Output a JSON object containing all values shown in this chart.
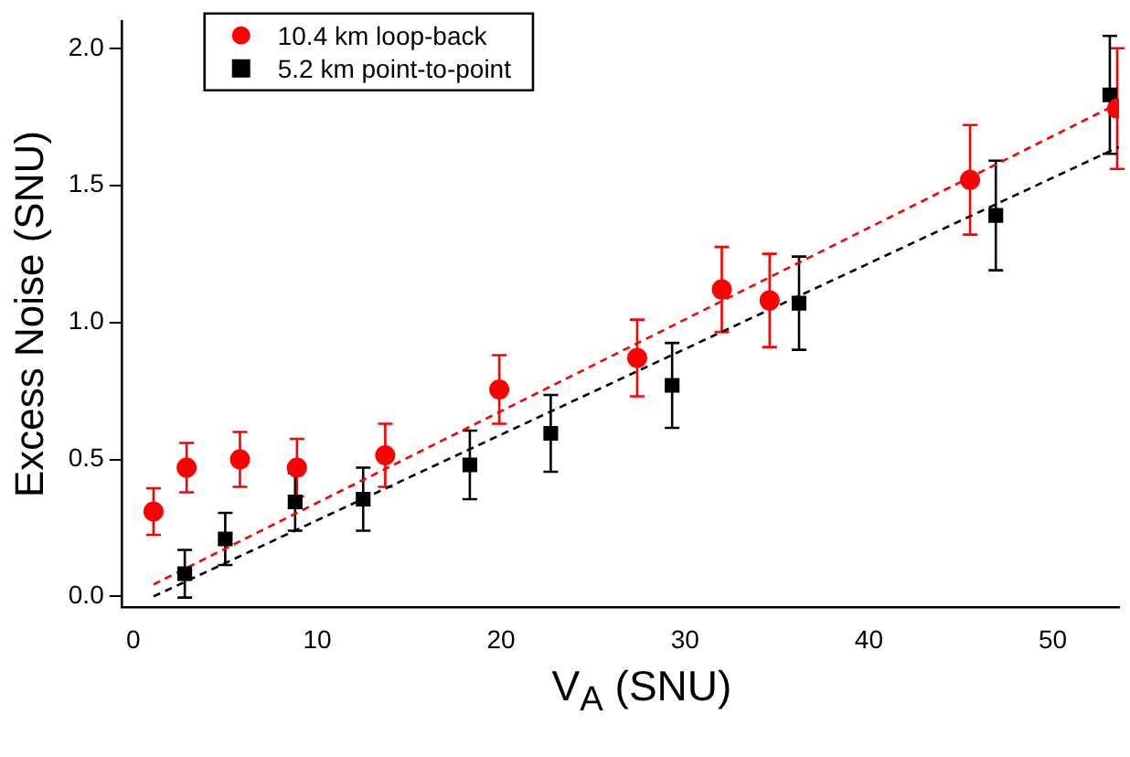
{
  "chart_data": {
    "type": "scatter",
    "xlabel": "V$_{A}$ (SNU)",
    "ylabel": "Excess Noise (SNU)",
    "xlim": [
      -0.6,
      53.6
    ],
    "ylim": [
      -0.04,
      2.1
    ],
    "xticks": [
      0,
      10,
      20,
      30,
      40,
      50
    ],
    "yticks": [
      {
        "value": 0,
        "label": "0.0"
      },
      0.5,
      {
        "value": 1,
        "label": "1.0"
      },
      1.5,
      {
        "value": 2,
        "label": "2.0"
      }
    ],
    "grid": false,
    "legend": "top left",
    "series": [
      {
        "name": "10.4 km loop-back",
        "type": "scatter",
        "marker": "circle",
        "color": "#ff0000",
        "x": [
          1.1,
          2.9,
          5.8,
          8.9,
          13.7,
          19.9,
          27.4,
          32.0,
          34.6,
          45.5,
          53.5
        ],
        "values": [
          0.31,
          0.47,
          0.5,
          0.47,
          0.515,
          0.755,
          0.87,
          1.12,
          1.08,
          1.52,
          1.78
        ],
        "errors": [
          0.085,
          0.09,
          0.1,
          0.105,
          0.115,
          0.125,
          0.14,
          0.155,
          0.17,
          0.2,
          0.22
        ]
      },
      {
        "name": "5.2 km point-to-point",
        "type": "scatter",
        "marker": "square",
        "color": "#000000",
        "x": [
          2.8,
          5.0,
          8.8,
          12.5,
          18.3,
          22.7,
          29.3,
          36.2,
          46.9,
          53.1
        ],
        "values": [
          0.083,
          0.21,
          0.345,
          0.355,
          0.48,
          0.595,
          0.77,
          1.07,
          1.39,
          1.83
        ],
        "errors": [
          0.087,
          0.095,
          0.105,
          0.115,
          0.125,
          0.14,
          0.155,
          0.17,
          0.2,
          0.215
        ]
      },
      {
        "type": "line",
        "marker": "none",
        "line_style": "dashed",
        "color": "#ff0000",
        "x": [
          1.1,
          53.6
        ],
        "values": [
          0.044,
          1.8
        ]
      },
      {
        "type": "line",
        "marker": "none",
        "line_style": "dashed",
        "color": "#000000",
        "x": [
          1.1,
          53.6
        ],
        "values": [
          0.0,
          1.64
        ]
      }
    ]
  }
}
